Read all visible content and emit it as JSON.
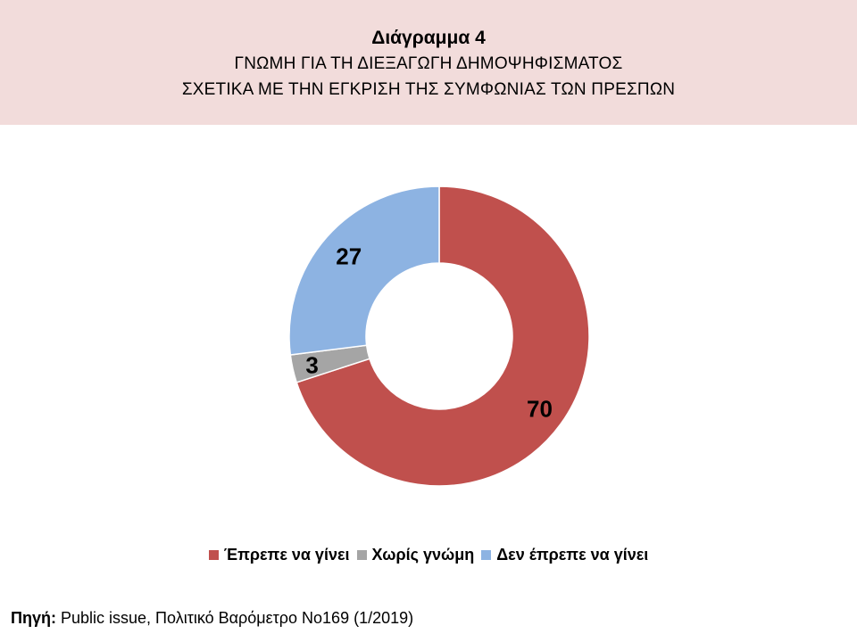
{
  "header": {
    "title": "Διάγραμμα 4",
    "subtitle_line1": "ΓΝΩΜΗ ΓΙΑ ΤΗ ΔΙΕΞΑΓΩΓΗ ΔΗΜΟΨΗΦΙΣΜΑΤΟΣ",
    "subtitle_line2": "ΣΧΕΤΙΚΑ ΜΕ ΤΗΝ ΕΓΚΡΙΣΗ ΤΗΣ ΣΥΜΦΩΝΙΑΣ ΤΩΝ ΠΡΕΣΠΩΝ"
  },
  "chart_data": {
    "type": "pie",
    "style": "donut",
    "title": "Διάγραμμα 4",
    "subtitle": "ΓΝΩΜΗ ΓΙΑ ΤΗ ΔΙΕΞΑΓΩΓΗ ΔΗΜΟΨΗΦΙΣΜΑΤΟΣ ΣΧΕΤΙΚΑ ΜΕ ΤΗΝ ΕΓΚΡΙΣΗ ΤΗΣ ΣΥΜΦΩΝΙΑΣ ΤΩΝ ΠΡΕΣΠΩΝ",
    "legend_position": "bottom",
    "slices": [
      {
        "label": "Έπρεπε να γίνει",
        "value": 70,
        "color": "#c0504d"
      },
      {
        "label": "Χωρίς γνώμη",
        "value": 3,
        "color": "#a5a5a5"
      },
      {
        "label": "Δεν έπρεπε να γίνει",
        "value": 27,
        "color": "#8db3e2"
      }
    ]
  },
  "footer": {
    "source_label": "Πηγή:",
    "source_text": " Public issue, Πολιτικό Βαρόμετρο Νο169 (1/2019)"
  }
}
